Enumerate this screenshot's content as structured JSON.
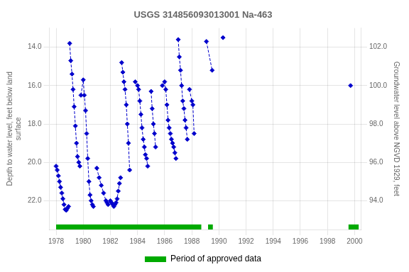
{
  "chart_data": {
    "type": "line",
    "title": "USGS 314856093013001 Na-463",
    "ylabel": "Depth to water level, feet below land\nsurface",
    "y2label": "Groundwater level above NGVD 1929, feet",
    "xlim": [
      1977.5,
      2000.5
    ],
    "xticks": [
      1978,
      1980,
      1982,
      1984,
      1986,
      1988,
      1990,
      1992,
      1994,
      1996,
      1998,
      2000
    ],
    "ylim": [
      23.5,
      13.0
    ],
    "yticks": [
      {
        "value": 14,
        "label": "14.0"
      },
      {
        "value": 16,
        "label": "16.0"
      },
      {
        "value": 18,
        "label": "18.0"
      },
      {
        "value": 20,
        "label": "20.0"
      },
      {
        "value": 22,
        "label": "22.0"
      }
    ],
    "y2lim": [
      92.5,
      103.0
    ],
    "y2ticks": [
      {
        "value": 102,
        "label": "102.0"
      },
      {
        "value": 100,
        "label": "100.0"
      },
      {
        "value": 98,
        "label": "98.0"
      },
      {
        "value": 96,
        "label": "96.0"
      },
      {
        "value": 94,
        "label": "94.0"
      }
    ],
    "grid": true,
    "legend": "bottom",
    "series": [
      {
        "color": "#0000cc",
        "line_style": "dashed",
        "marker": "diamond",
        "x": [
          1978.0,
          1978.08,
          1978.17,
          1978.25,
          1978.33,
          1978.42,
          1978.5,
          1978.58,
          1978.67,
          1978.75,
          1978.83,
          1978.92,
          null,
          1979.0,
          1979.08,
          1979.17,
          1979.25,
          1979.33,
          1979.42,
          1979.5,
          1979.58,
          1979.67,
          1979.75,
          null,
          1979.83,
          1980.0,
          1980.08,
          1980.17,
          1980.25,
          1980.33,
          1980.42,
          1980.5,
          1980.58,
          1980.67,
          1980.75,
          null,
          1981.0,
          1981.17,
          1981.33,
          1981.5,
          1981.67,
          1981.75,
          1981.83,
          null,
          1982.0,
          1982.08,
          1982.17,
          1982.25,
          1982.33,
          1982.42,
          1982.5,
          1982.58,
          1982.67,
          1982.75,
          null,
          1982.83,
          1982.92,
          1983.0,
          1983.08,
          1983.17,
          1983.25,
          1983.33,
          1983.42,
          null,
          1983.83,
          1984.0,
          1984.08,
          1984.17,
          1984.25,
          1984.33,
          1984.42,
          1984.5,
          1984.58,
          1984.67,
          1984.75,
          null,
          1985.0,
          1985.08,
          1985.17,
          1985.25,
          1985.33,
          null,
          1985.83,
          1986.0,
          1986.08,
          1986.17,
          1986.25,
          1986.33,
          1986.42,
          1986.5,
          1986.58,
          1986.67,
          1986.75,
          1986.83,
          null,
          1987.0,
          1987.08,
          1987.17,
          1987.25,
          1987.33,
          1987.42,
          1987.5,
          1987.58,
          1987.67,
          null,
          1987.83,
          1988.0,
          1988.08,
          1988.17,
          null,
          1989.08,
          1989.5,
          null,
          1990.3,
          null,
          1999.7
        ],
        "values": [
          20.2,
          20.4,
          20.7,
          21.0,
          21.3,
          21.6,
          21.9,
          22.2,
          22.45,
          22.5,
          22.4,
          22.3,
          null,
          13.8,
          14.7,
          15.4,
          16.2,
          17.1,
          18.1,
          19.0,
          19.7,
          20.0,
          20.2,
          null,
          16.5,
          15.7,
          16.5,
          17.3,
          18.5,
          19.8,
          21.0,
          21.7,
          22.0,
          22.2,
          22.3,
          null,
          20.3,
          20.8,
          21.2,
          21.6,
          22.0,
          22.1,
          22.2,
          null,
          22.0,
          22.1,
          22.2,
          22.3,
          22.2,
          22.1,
          21.9,
          21.5,
          21.1,
          20.8,
          null,
          14.8,
          15.3,
          15.8,
          16.2,
          17.0,
          18.0,
          19.0,
          20.4,
          null,
          15.8,
          16.0,
          16.2,
          16.8,
          17.5,
          18.2,
          18.8,
          19.2,
          19.6,
          19.8,
          20.2,
          null,
          16.3,
          17.2,
          18.0,
          18.5,
          19.2,
          null,
          16.0,
          15.8,
          16.2,
          17.0,
          17.8,
          18.2,
          18.5,
          18.8,
          19.0,
          19.2,
          19.5,
          19.8,
          null,
          13.6,
          14.5,
          15.2,
          16.0,
          16.8,
          17.2,
          17.8,
          18.2,
          18.8,
          null,
          16.2,
          16.8,
          17.0,
          18.5,
          null,
          13.7,
          15.2,
          null,
          13.5,
          null,
          16.0
        ]
      }
    ],
    "approved_periods": {
      "name": "Period of approved data",
      "color": "#00aa00",
      "ranges": [
        [
          1978.0,
          1988.7
        ],
        [
          1989.2,
          1989.55
        ],
        [
          1999.55,
          2000.3
        ]
      ]
    }
  }
}
